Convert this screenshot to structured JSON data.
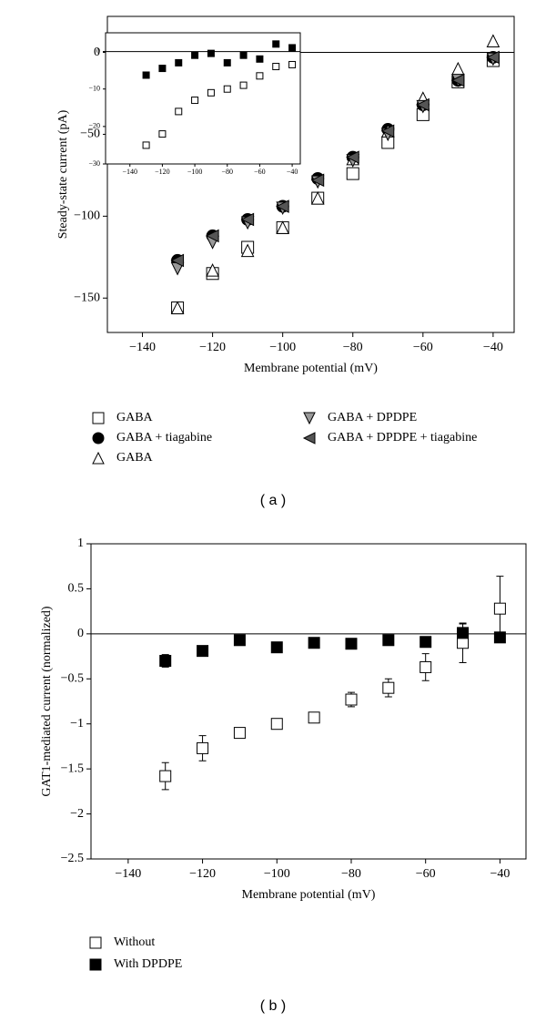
{
  "chart_data": [
    {
      "type": "scatter",
      "panel_label": "( a )",
      "xlabel": "Membrane potential (mV)",
      "ylabel": "Steady-state current (pA)",
      "x": [
        -130,
        -120,
        -110,
        -100,
        -90,
        -80,
        -70,
        -60,
        -50,
        -40
      ],
      "xlim": [
        -150,
        -34
      ],
      "ylim": [
        -171,
        22
      ],
      "xticks": [
        {
          "value": -140,
          "label": "−140"
        },
        {
          "value": -120,
          "label": "−120"
        },
        {
          "value": -100,
          "label": "−100"
        },
        {
          "value": -80,
          "label": "−80"
        },
        {
          "value": -60,
          "label": "−60"
        },
        {
          "value": -40,
          "label": "−40"
        }
      ],
      "yticks": [
        0,
        {
          "value": -50,
          "label": "−50"
        },
        {
          "value": -100,
          "label": "−100"
        },
        {
          "value": -150,
          "label": "−150"
        }
      ],
      "zero_line": true,
      "series": [
        {
          "name": "GABA",
          "marker": "square",
          "color": "#ffffff",
          "values": [
            -156,
            -135,
            -119,
            -107,
            -89,
            -74,
            -55,
            -38,
            -18,
            -5
          ]
        },
        {
          "name": "GABA + tiagabine",
          "marker": "circle",
          "color": "#000000",
          "values": [
            -127,
            -112,
            -102,
            -94,
            -77,
            -64,
            -47,
            -32,
            -17,
            -3
          ]
        },
        {
          "name": "GABA",
          "marker": "triangle-up",
          "color": "#ffffff",
          "values": [
            -156,
            -133,
            -121,
            -107,
            -89,
            -65,
            -48,
            -28,
            -10,
            7
          ]
        },
        {
          "name": "GABA + DPDPE",
          "marker": "triangle-down",
          "color": "#999999",
          "values": [
            -132,
            -116,
            -104,
            -95,
            -79,
            -66,
            -50,
            -33,
            -17,
            -4
          ]
        },
        {
          "name": "GABA + DPDPE + tiagabine",
          "marker": "triangle-left",
          "color": "#555555",
          "values": [
            -127,
            -112,
            -102,
            -94,
            -78,
            -64,
            -48,
            -32,
            -17,
            -3
          ]
        }
      ]
    },
    {
      "type": "scatter",
      "x": [
        -130,
        -120,
        -110,
        -100,
        -90,
        -80,
        -70,
        -60,
        -50,
        -40
      ],
      "xlim": [
        -155,
        -35
      ],
      "ylim": [
        -30,
        5
      ],
      "xticks": [
        {
          "value": -140,
          "label": "−140"
        },
        {
          "value": -120,
          "label": "−120"
        },
        {
          "value": -100,
          "label": "−100"
        },
        {
          "value": -80,
          "label": "−80"
        },
        {
          "value": -60,
          "label": "−60"
        },
        {
          "value": -40,
          "label": "−40"
        }
      ],
      "yticks": [
        0,
        {
          "value": -10,
          "label": "−10"
        },
        {
          "value": -20,
          "label": "−20"
        },
        {
          "value": -30,
          "label": "−30"
        }
      ],
      "zero_line": true,
      "series": [
        {
          "marker": "square",
          "color": "#000000",
          "values": [
            -6.3,
            -4.5,
            -3,
            -1,
            -0.5,
            -3,
            -1,
            -2,
            2,
            1
          ]
        },
        {
          "marker": "square",
          "color": "#ffffff",
          "values": [
            -25,
            -22,
            -16,
            -13,
            -11,
            -10,
            -9,
            -6.5,
            -4,
            -3.5
          ]
        }
      ]
    },
    {
      "type": "scatter",
      "panel_label": "( b )",
      "xlabel": "Membrane potential (mV)",
      "ylabel": "GAT1-mediated current (normalized)",
      "x": [
        -130,
        -120,
        -110,
        -100,
        -90,
        -80,
        -70,
        -60,
        -50,
        -40
      ],
      "xlim": [
        -150,
        -33
      ],
      "ylim": [
        -2.5,
        1
      ],
      "xticks": [
        {
          "value": -140,
          "label": "−140"
        },
        {
          "value": -120,
          "label": "−120"
        },
        {
          "value": -100,
          "label": "−100"
        },
        {
          "value": -80,
          "label": "−80"
        },
        {
          "value": -60,
          "label": "−60"
        },
        {
          "value": -40,
          "label": "−40"
        }
      ],
      "yticks": [
        1,
        0.5,
        0,
        {
          "value": -0.5,
          "label": "−0.5"
        },
        {
          "value": -1,
          "label": "−1"
        },
        {
          "value": -1.5,
          "label": "−1.5"
        },
        {
          "value": -2,
          "label": "−2"
        },
        {
          "value": -2.5,
          "label": "−2.5"
        }
      ],
      "zero_line": true,
      "series": [
        {
          "name": "Without",
          "marker": "square",
          "color": "#ffffff",
          "values": [
            -1.58,
            -1.27,
            -1.1,
            -1.0,
            -0.93,
            -0.73,
            -0.6,
            -0.37,
            -0.1,
            0.28
          ],
          "errors": [
            0.15,
            0.14,
            0.03,
            0.03,
            0.03,
            0.08,
            0.1,
            0.15,
            0.22,
            0.36
          ]
        },
        {
          "name": "With DPDPE",
          "marker": "square",
          "color": "#000000",
          "values": [
            -0.3,
            -0.19,
            -0.07,
            -0.15,
            -0.1,
            -0.11,
            -0.07,
            -0.09,
            0.01,
            -0.04
          ],
          "errors": [
            0.07,
            0.03,
            0.02,
            0.02,
            0.02,
            0.02,
            0.02,
            0.02,
            0.1,
            0.02
          ]
        }
      ]
    }
  ]
}
